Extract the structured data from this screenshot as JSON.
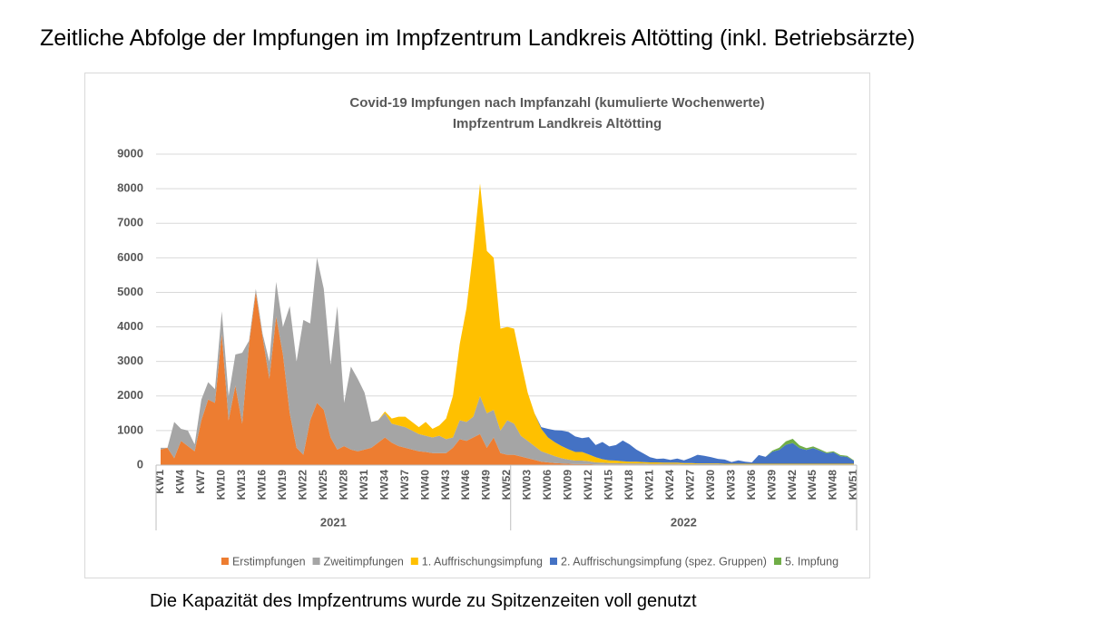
{
  "heading": "Zeitliche Abfolge der Impfungen im Impfzentrum Landkreis Altötting (inkl. Betriebsärzte)",
  "footer": "Die Kapazität des Impfzentrums wurde zu Spitzenzeiten voll genutzt",
  "chart_data": {
    "type": "stacked_area",
    "title": [
      "Covid-19 Impfungen nach Impfanzahl (kumulierte Wochenwerte)",
      "Impfzentrum Landkreis Altötting"
    ],
    "categories": [
      "KW1",
      null,
      null,
      "KW4",
      null,
      null,
      "KW7",
      null,
      null,
      "KW10",
      null,
      null,
      "KW13",
      null,
      null,
      "KW16",
      null,
      null,
      "KW19",
      null,
      null,
      "KW22",
      null,
      null,
      "KW25",
      null,
      null,
      "KW28",
      null,
      null,
      "KW31",
      null,
      null,
      "KW34",
      null,
      null,
      "KW37",
      null,
      null,
      "KW40",
      null,
      null,
      "KW43",
      null,
      null,
      "KW46",
      null,
      null,
      "KW49",
      null,
      null,
      "KW52",
      null,
      null,
      "KW03",
      null,
      null,
      "KW06",
      null,
      null,
      "KW09",
      null,
      null,
      "KW12",
      null,
      null,
      "KW15",
      null,
      null,
      "KW18",
      null,
      null,
      "KW21",
      null,
      null,
      "KW24",
      null,
      null,
      "KW27",
      null,
      null,
      "KW30",
      null,
      null,
      "KW33",
      null,
      null,
      "KW36",
      null,
      null,
      "KW39",
      null,
      null,
      "KW42",
      null,
      null,
      "KW45",
      null,
      null,
      "KW48",
      null,
      null,
      "KW51"
    ],
    "groups": [
      {
        "label": "2021",
        "count": 52
      },
      {
        "label": "2022",
        "count": 51
      }
    ],
    "ylim": [
      0,
      9000
    ],
    "yticks": [
      0,
      1000,
      2000,
      3000,
      4000,
      5000,
      6000,
      7000,
      8000,
      9000
    ],
    "grid": true,
    "legend": "bottom",
    "series": [
      {
        "name": "Erstimpfungen",
        "color": "#ed7d31",
        "values": [
          450,
          500,
          200,
          700,
          550,
          400,
          1300,
          1900,
          1800,
          3800,
          1300,
          2300,
          1200,
          3500,
          5000,
          3700,
          2500,
          4300,
          3200,
          1500,
          500,
          300,
          1300,
          1800,
          1600,
          800,
          450,
          550,
          450,
          400,
          450,
          500,
          650,
          800,
          650,
          550,
          500,
          450,
          400,
          380,
          350,
          350,
          350,
          500,
          750,
          700,
          800,
          900,
          500,
          800,
          350,
          300,
          300,
          250,
          200,
          150,
          100,
          80,
          60,
          50,
          40,
          30,
          30,
          30,
          20,
          20,
          20,
          20,
          20,
          20,
          20,
          20,
          20,
          20,
          20,
          20,
          20,
          10,
          10,
          10,
          10,
          10,
          10,
          10,
          10,
          10,
          10,
          10,
          10,
          10,
          10,
          10,
          10,
          10,
          10,
          10,
          10,
          10,
          10,
          10,
          10,
          10,
          10
        ]
      },
      {
        "name": "Zweitimpfungen",
        "color": "#a5a5a5",
        "values": [
          50,
          0,
          1050,
          350,
          450,
          200,
          600,
          500,
          400,
          650,
          700,
          900,
          2050,
          100,
          100,
          100,
          500,
          1000,
          800,
          3100,
          2500,
          3900,
          2800,
          4200,
          3500,
          2100,
          4150,
          1250,
          2400,
          2100,
          1650,
          750,
          650,
          700,
          550,
          600,
          600,
          550,
          500,
          470,
          450,
          500,
          400,
          300,
          550,
          550,
          600,
          1100,
          1000,
          800,
          650,
          1000,
          900,
          600,
          500,
          400,
          300,
          250,
          200,
          150,
          120,
          100,
          100,
          80,
          60,
          50,
          40,
          40,
          30,
          30,
          30,
          30,
          20,
          20,
          20,
          20,
          20,
          20,
          20,
          20,
          20,
          20,
          20,
          10,
          10,
          10,
          10,
          10,
          10,
          10,
          10,
          10,
          10,
          10,
          10,
          10,
          10,
          10,
          10,
          10,
          10,
          10,
          10
        ]
      },
      {
        "name": "1. Auffrischungsimpfung",
        "color": "#ffc000",
        "values": [
          0,
          0,
          0,
          0,
          0,
          0,
          0,
          0,
          0,
          0,
          0,
          0,
          0,
          0,
          0,
          0,
          0,
          0,
          0,
          0,
          0,
          0,
          0,
          0,
          0,
          0,
          0,
          0,
          0,
          0,
          0,
          0,
          0,
          50,
          150,
          250,
          300,
          250,
          200,
          400,
          250,
          300,
          600,
          1200,
          2200,
          3300,
          4800,
          6150,
          4700,
          4400,
          2950,
          2700,
          2750,
          2150,
          1400,
          950,
          650,
          470,
          400,
          350,
          300,
          250,
          250,
          200,
          150,
          100,
          80,
          70,
          60,
          50,
          50,
          40,
          40,
          40,
          30,
          30,
          30,
          30,
          30,
          20,
          20,
          20,
          20,
          20,
          20,
          20,
          20,
          20,
          20,
          20,
          20,
          20,
          20,
          20,
          20,
          20,
          20,
          20,
          20,
          20,
          20,
          20,
          20
        ]
      },
      {
        "name": "2. Auffrischungsimpfung (spez. Gruppen)",
        "color": "#4472c4",
        "values": [
          0,
          0,
          0,
          0,
          0,
          0,
          0,
          0,
          0,
          0,
          0,
          0,
          0,
          0,
          0,
          0,
          0,
          0,
          0,
          0,
          0,
          0,
          0,
          0,
          0,
          0,
          0,
          0,
          0,
          0,
          0,
          0,
          0,
          0,
          0,
          0,
          0,
          0,
          0,
          0,
          0,
          0,
          0,
          0,
          0,
          0,
          0,
          0,
          0,
          0,
          0,
          0,
          0,
          0,
          0,
          0,
          50,
          250,
          350,
          450,
          500,
          450,
          400,
          500,
          350,
          500,
          400,
          450,
          600,
          500,
          350,
          250,
          150,
          100,
          120,
          80,
          120,
          80,
          150,
          250,
          220,
          180,
          130,
          120,
          50,
          100,
          60,
          40,
          250,
          200,
          350,
          400,
          550,
          600,
          450,
          400,
          450,
          380,
          300,
          330,
          220,
          200,
          80
        ]
      },
      {
        "name": "5. Impfung",
        "color": "#70ad47",
        "values": [
          0,
          0,
          0,
          0,
          0,
          0,
          0,
          0,
          0,
          0,
          0,
          0,
          0,
          0,
          0,
          0,
          0,
          0,
          0,
          0,
          0,
          0,
          0,
          0,
          0,
          0,
          0,
          0,
          0,
          0,
          0,
          0,
          0,
          0,
          0,
          0,
          0,
          0,
          0,
          0,
          0,
          0,
          0,
          0,
          0,
          0,
          0,
          0,
          0,
          0,
          0,
          0,
          0,
          0,
          0,
          0,
          0,
          0,
          0,
          0,
          0,
          0,
          0,
          0,
          0,
          0,
          0,
          0,
          0,
          0,
          0,
          0,
          0,
          0,
          0,
          0,
          0,
          0,
          0,
          0,
          0,
          0,
          0,
          0,
          0,
          0,
          0,
          0,
          0,
          0,
          30,
          60,
          100,
          120,
          80,
          50,
          50,
          40,
          30,
          30,
          30,
          30,
          20
        ]
      }
    ]
  }
}
